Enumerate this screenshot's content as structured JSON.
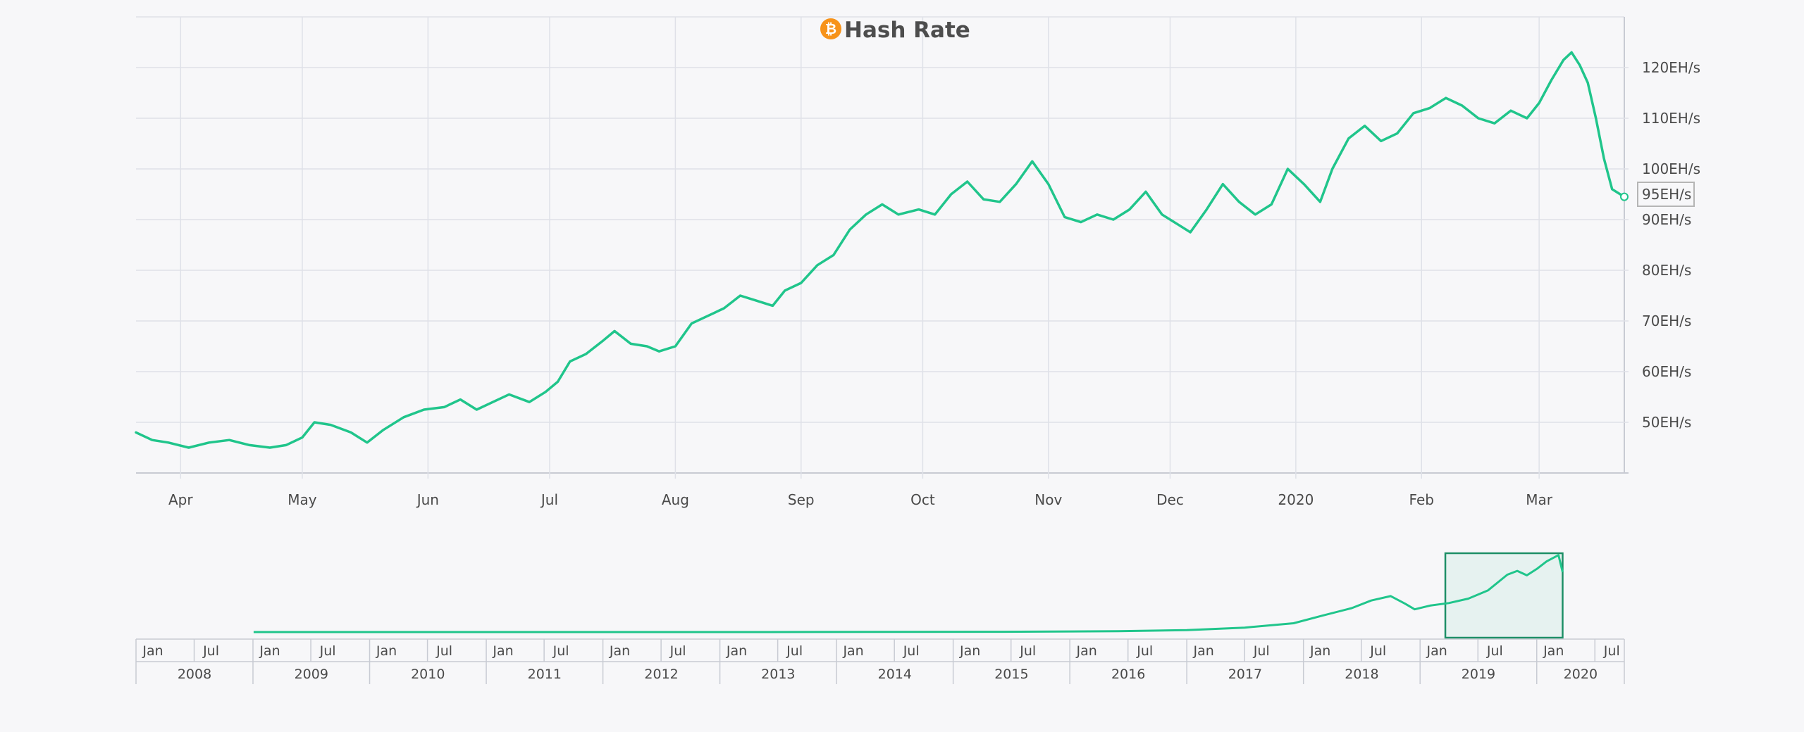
{
  "chart_data": {
    "type": "line",
    "title": "Hash Rate",
    "title_icon": "bitcoin-icon",
    "accent_color": "#20c58b",
    "icon_color": "#f7931a",
    "y_unit": "EH/s",
    "ylim": [
      40,
      130
    ],
    "yticks": [
      {
        "value": 120,
        "label": "120EH/s"
      },
      {
        "value": 110,
        "label": "110EH/s"
      },
      {
        "value": 100,
        "label": "100EH/s"
      },
      {
        "value": 90,
        "label": "90EH/s"
      },
      {
        "value": 80,
        "label": "80EH/s"
      },
      {
        "value": 70,
        "label": "70EH/s"
      },
      {
        "value": 60,
        "label": "60EH/s"
      },
      {
        "value": 50,
        "label": "50EH/s"
      }
    ],
    "xlim": [
      "2019-03-21",
      "2020-03-22"
    ],
    "xticks": [
      {
        "date": "2019-04-01",
        "label": "Apr"
      },
      {
        "date": "2019-05-01",
        "label": "May"
      },
      {
        "date": "2019-06-01",
        "label": "Jun"
      },
      {
        "date": "2019-07-01",
        "label": "Jul"
      },
      {
        "date": "2019-08-01",
        "label": "Aug"
      },
      {
        "date": "2019-09-01",
        "label": "Sep"
      },
      {
        "date": "2019-10-01",
        "label": "Oct"
      },
      {
        "date": "2019-11-01",
        "label": "Nov"
      },
      {
        "date": "2019-12-01",
        "label": "Dec"
      },
      {
        "date": "2020-01-01",
        "label": "2020"
      },
      {
        "date": "2020-02-01",
        "label": "Feb"
      },
      {
        "date": "2020-03-01",
        "label": "Mar"
      }
    ],
    "current_value": 95,
    "current_label": "95EH/s",
    "series": [
      {
        "name": "Hash Rate",
        "points": [
          [
            "2019-03-21",
            48
          ],
          [
            "2019-03-25",
            46.5
          ],
          [
            "2019-03-29",
            46
          ],
          [
            "2019-04-03",
            45
          ],
          [
            "2019-04-08",
            46
          ],
          [
            "2019-04-13",
            46.5
          ],
          [
            "2019-04-18",
            45.5
          ],
          [
            "2019-04-23",
            45
          ],
          [
            "2019-04-27",
            45.5
          ],
          [
            "2019-05-01",
            47
          ],
          [
            "2019-05-04",
            50
          ],
          [
            "2019-05-08",
            49.5
          ],
          [
            "2019-05-13",
            48
          ],
          [
            "2019-05-17",
            46
          ],
          [
            "2019-05-21",
            48.5
          ],
          [
            "2019-05-26",
            51
          ],
          [
            "2019-05-31",
            52.5
          ],
          [
            "2019-06-05",
            53
          ],
          [
            "2019-06-09",
            54.5
          ],
          [
            "2019-06-13",
            52.5
          ],
          [
            "2019-06-17",
            54
          ],
          [
            "2019-06-21",
            55.5
          ],
          [
            "2019-06-26",
            54
          ],
          [
            "2019-06-30",
            56
          ],
          [
            "2019-07-03",
            58
          ],
          [
            "2019-07-06",
            62
          ],
          [
            "2019-07-10",
            63.5
          ],
          [
            "2019-07-14",
            66
          ],
          [
            "2019-07-17",
            68
          ],
          [
            "2019-07-21",
            65.5
          ],
          [
            "2019-07-25",
            65
          ],
          [
            "2019-07-28",
            64
          ],
          [
            "2019-08-01",
            65
          ],
          [
            "2019-08-05",
            69.5
          ],
          [
            "2019-08-09",
            71
          ],
          [
            "2019-08-13",
            72.5
          ],
          [
            "2019-08-17",
            75
          ],
          [
            "2019-08-21",
            74
          ],
          [
            "2019-08-25",
            73
          ],
          [
            "2019-08-28",
            76
          ],
          [
            "2019-09-01",
            77.5
          ],
          [
            "2019-09-05",
            81
          ],
          [
            "2019-09-09",
            83
          ],
          [
            "2019-09-13",
            88
          ],
          [
            "2019-09-17",
            91
          ],
          [
            "2019-09-21",
            93
          ],
          [
            "2019-09-25",
            91
          ],
          [
            "2019-09-30",
            92
          ],
          [
            "2019-10-04",
            91
          ],
          [
            "2019-10-08",
            95
          ],
          [
            "2019-10-12",
            97.5
          ],
          [
            "2019-10-16",
            94
          ],
          [
            "2019-10-20",
            93.5
          ],
          [
            "2019-10-24",
            97
          ],
          [
            "2019-10-28",
            101.5
          ],
          [
            "2019-11-01",
            97
          ],
          [
            "2019-11-05",
            90.5
          ],
          [
            "2019-11-09",
            89.5
          ],
          [
            "2019-11-13",
            91
          ],
          [
            "2019-11-17",
            90
          ],
          [
            "2019-11-21",
            92
          ],
          [
            "2019-11-25",
            95.5
          ],
          [
            "2019-11-29",
            91
          ],
          [
            "2019-12-03",
            89
          ],
          [
            "2019-12-06",
            87.5
          ],
          [
            "2019-12-10",
            92
          ],
          [
            "2019-12-14",
            97
          ],
          [
            "2019-12-18",
            93.5
          ],
          [
            "2019-12-22",
            91
          ],
          [
            "2019-12-26",
            93
          ],
          [
            "2019-12-30",
            100
          ],
          [
            "2020-01-03",
            97
          ],
          [
            "2020-01-07",
            93.5
          ],
          [
            "2020-01-10",
            100
          ],
          [
            "2020-01-14",
            106
          ],
          [
            "2020-01-18",
            108.5
          ],
          [
            "2020-01-22",
            105.5
          ],
          [
            "2020-01-26",
            107
          ],
          [
            "2020-01-30",
            111
          ],
          [
            "2020-02-03",
            112
          ],
          [
            "2020-02-07",
            114
          ],
          [
            "2020-02-11",
            112.5
          ],
          [
            "2020-02-15",
            110
          ],
          [
            "2020-02-19",
            109
          ],
          [
            "2020-02-23",
            111.5
          ],
          [
            "2020-02-27",
            110
          ],
          [
            "2020-03-01",
            113
          ],
          [
            "2020-03-04",
            117.5
          ],
          [
            "2020-03-07",
            121.5
          ],
          [
            "2020-03-09",
            123
          ],
          [
            "2020-03-11",
            120.5
          ],
          [
            "2020-03-13",
            117
          ],
          [
            "2020-03-15",
            110
          ],
          [
            "2020-03-17",
            102
          ],
          [
            "2020-03-19",
            96
          ],
          [
            "2020-03-22",
            94.5
          ]
        ]
      }
    ],
    "navigator": {
      "range": [
        "2008-01-01",
        "2020-10-01"
      ],
      "selected_range": [
        "2019-03-21",
        "2020-03-22"
      ],
      "month_labels": [
        "Jan",
        "Jul"
      ],
      "years": [
        "2008",
        "2009",
        "2010",
        "2011",
        "2012",
        "2013",
        "2014",
        "2015",
        "2016",
        "2017",
        "2018",
        "2019",
        "2020"
      ],
      "ylim": [
        0,
        125
      ],
      "series": [
        [
          "2009-01-03",
          0
        ],
        [
          "2013-06-01",
          0
        ],
        [
          "2014-06-01",
          0.2
        ],
        [
          "2015-06-01",
          0.5
        ],
        [
          "2016-06-01",
          1.3
        ],
        [
          "2017-01-01",
          3
        ],
        [
          "2017-07-01",
          7
        ],
        [
          "2017-12-01",
          14
        ],
        [
          "2018-03-01",
          26
        ],
        [
          "2018-06-01",
          38
        ],
        [
          "2018-08-01",
          50
        ],
        [
          "2018-10-01",
          57
        ],
        [
          "2018-11-15",
          45
        ],
        [
          "2018-12-15",
          36
        ],
        [
          "2019-02-01",
          42
        ],
        [
          "2019-04-01",
          46
        ],
        [
          "2019-06-01",
          53
        ],
        [
          "2019-08-01",
          66
        ],
        [
          "2019-10-01",
          91
        ],
        [
          "2019-11-01",
          97
        ],
        [
          "2019-12-01",
          90
        ],
        [
          "2020-01-01",
          100
        ],
        [
          "2020-02-01",
          112
        ],
        [
          "2020-03-09",
          122
        ],
        [
          "2020-03-22",
          95
        ]
      ]
    }
  }
}
